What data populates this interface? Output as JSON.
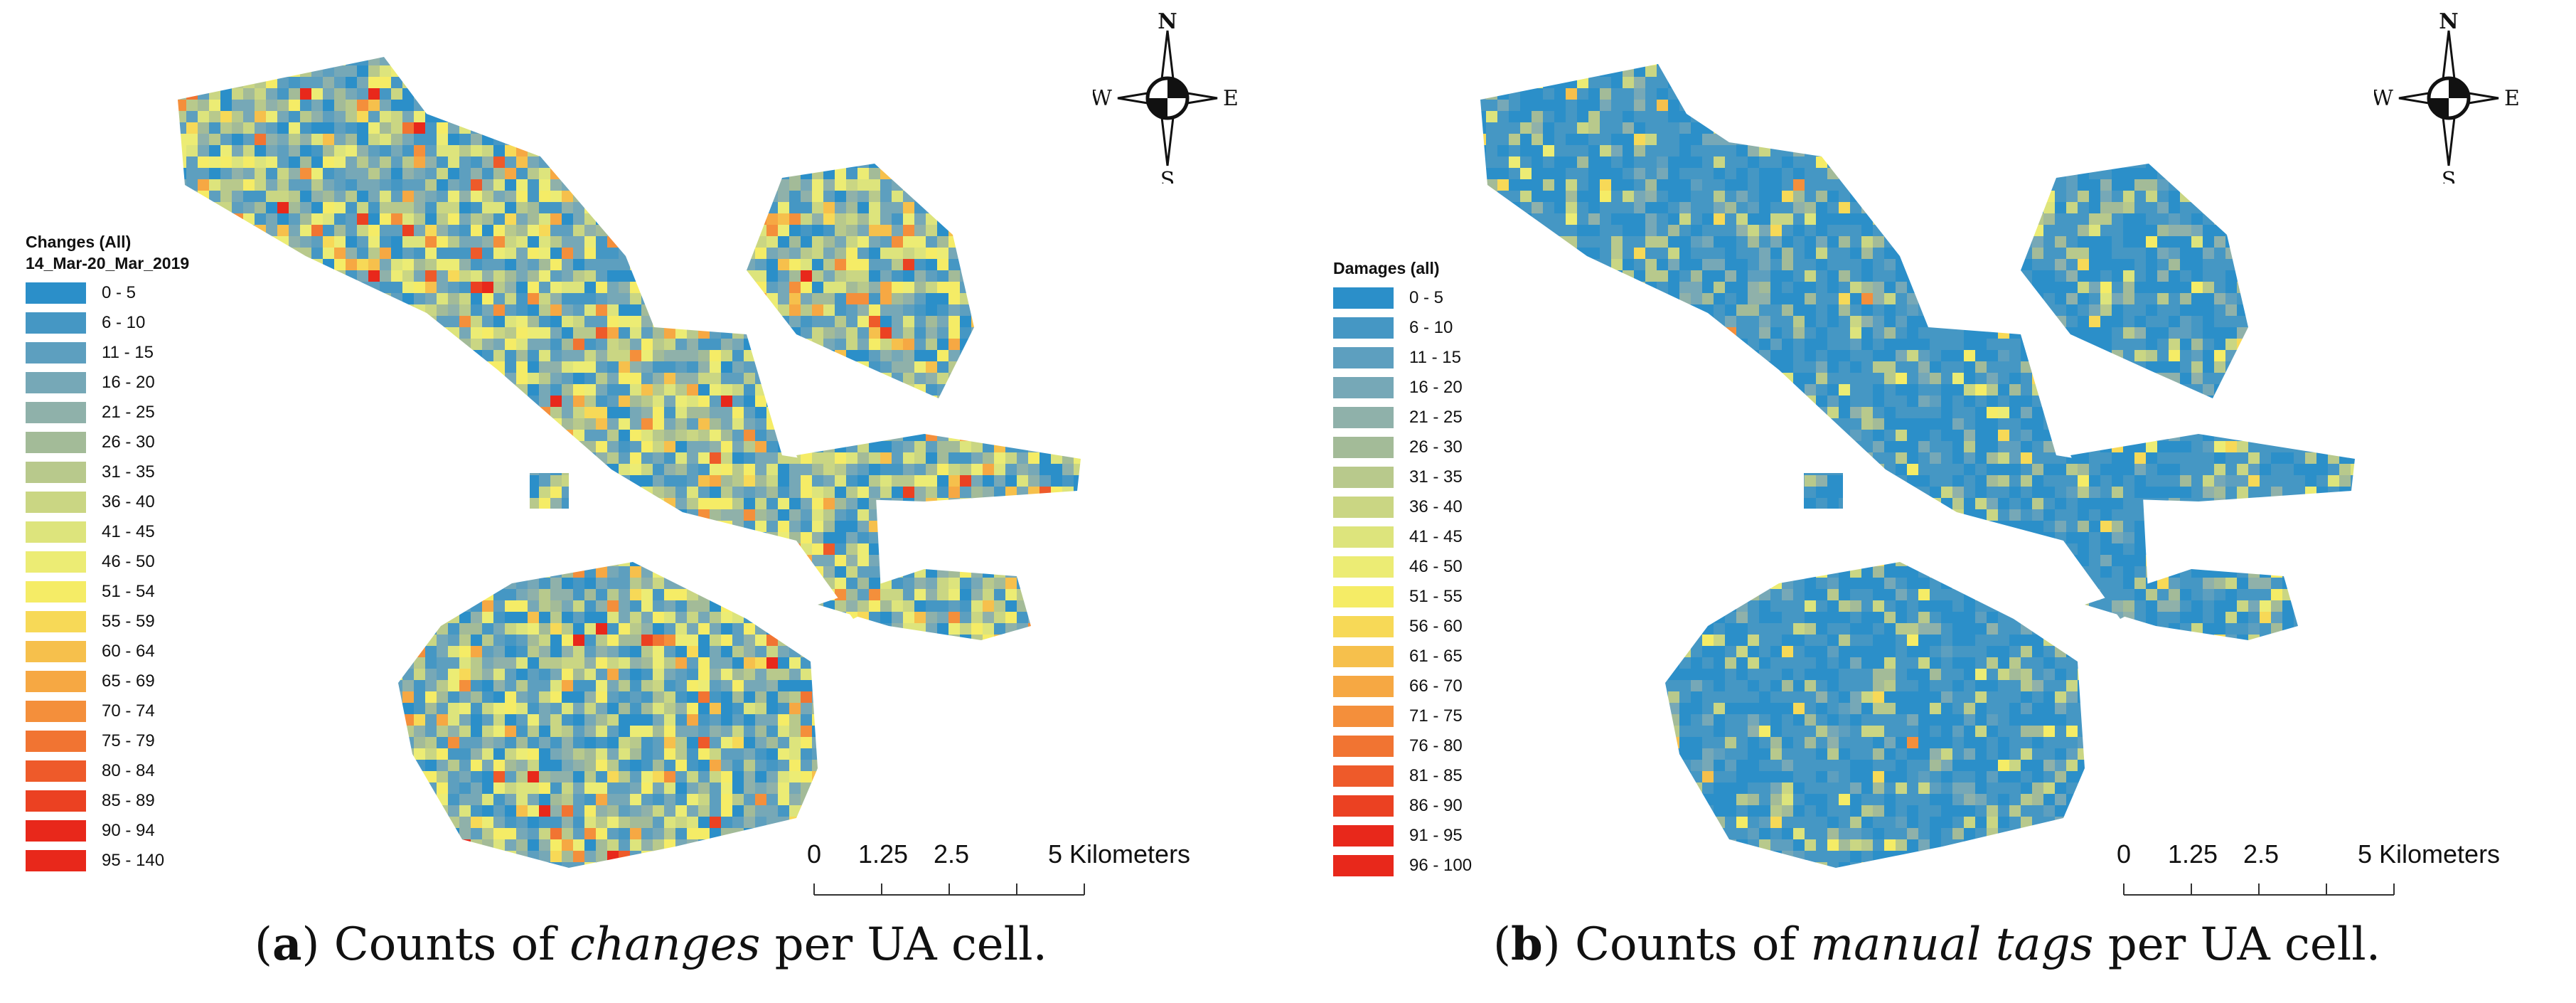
{
  "colors": {
    "ramp": [
      "#2b8fc9",
      "#4597c4",
      "#5d9fbf",
      "#76a8b7",
      "#8fb1aa",
      "#a3bb98",
      "#b8c98c",
      "#cad683",
      "#dde47c",
      "#ecec74",
      "#f5ec66",
      "#f7d957",
      "#f6c04c",
      "#f6a843",
      "#f48f3b",
      "#f17432",
      "#ee5a2a",
      "#eb4122",
      "#e8281b"
    ],
    "text": "#111111"
  },
  "panels": [
    {
      "id": "a",
      "legend": {
        "title": "Changes (All)",
        "subtitle": "14_Mar-20_Mar_2019",
        "items": [
          "0 - 5",
          "6 - 10",
          "11 - 15",
          "16 - 20",
          "21 - 25",
          "26 - 30",
          "31 - 35",
          "36 - 40",
          "41 - 45",
          "46 - 50",
          "51 - 54",
          "55 - 59",
          "60 - 64",
          "65 - 69",
          "70 - 74",
          "75 - 79",
          "80 - 84",
          "85 - 89",
          "90 - 94",
          "95 - 140"
        ]
      },
      "compass": {
        "n": "N",
        "s": "S",
        "e": "E",
        "w": "W"
      },
      "scalebar": {
        "labels": [
          "0",
          "1.25",
          "2.5",
          "5 Kilometers"
        ]
      },
      "caption": {
        "letter": "a",
        "prefix": "Counts of",
        "emph": "changes",
        "suffix": "per UA cell."
      }
    },
    {
      "id": "b",
      "legend": {
        "title": "Damages (all)",
        "items": [
          "0 - 5",
          "6 - 10",
          "11 - 15",
          "16 - 20",
          "21 - 25",
          "26 - 30",
          "31 - 35",
          "36 - 40",
          "41 - 45",
          "46 - 50",
          "51 - 55",
          "56 - 60",
          "61 - 65",
          "66 - 70",
          "71 - 75",
          "76 - 80",
          "81 - 85",
          "86 - 90",
          "91 - 95",
          "96 - 100"
        ]
      },
      "compass": {
        "n": "N",
        "s": "S",
        "e": "E",
        "w": "W"
      },
      "scalebar": {
        "labels": [
          "0",
          "1.25",
          "2.5",
          "5 Kilometers"
        ]
      },
      "caption": {
        "letter": "b",
        "prefix": "Counts of",
        "emph": "manual tags",
        "suffix": "per UA cell."
      }
    }
  ]
}
